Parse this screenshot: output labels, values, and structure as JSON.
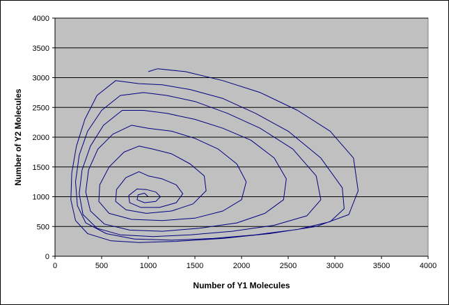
{
  "chart_data": {
    "type": "line",
    "title": "",
    "xlabel": "Number of Y1 Molecules",
    "ylabel": "Number of Y2 Molecules",
    "xlim": [
      0,
      4000
    ],
    "ylim": [
      0,
      4000
    ],
    "xticks": [
      0,
      500,
      1000,
      1500,
      2000,
      2500,
      3000,
      3500,
      4000
    ],
    "yticks": [
      0,
      500,
      1000,
      1500,
      2000,
      2500,
      3000,
      3500,
      4000
    ],
    "grid": "horizontal",
    "legend": "none",
    "plot_background": "#c0c0c0",
    "series_color": "#000080",
    "series": [
      {
        "description_points": "approximate outer-to-inner trajectory of a spiral (oscillation around ~(1000,1000)), outer cycles reach x≈3250, y≈3150",
        "x": [
          1000,
          1100,
          1400,
          1800,
          2200,
          2600,
          2950,
          3200,
          3250,
          3150,
          2800,
          2300,
          1800,
          1300,
          900,
          600,
          350,
          220,
          170,
          180,
          230,
          320,
          450,
          650,
          900,
          1150,
          1450,
          1800,
          2150,
          2500,
          2850,
          3080,
          3100,
          2950,
          2600,
          2150,
          1700,
          1250,
          850,
          550,
          330,
          240,
          220,
          260,
          350,
          500,
          700,
          950,
          1200,
          1500,
          1850,
          2200,
          2550,
          2800,
          2850,
          2700,
          2350,
          1900,
          1450,
          1050,
          700,
          450,
          300,
          260,
          290,
          380,
          520,
          720,
          950,
          1200,
          1500,
          1800,
          2100,
          2350,
          2480,
          2450,
          2250,
          1950,
          1550,
          1150,
          800,
          530,
          380,
          330,
          360,
          460,
          620,
          820,
          1000,
          1250,
          1500,
          1750,
          1950,
          2050,
          2000,
          1800,
          1500,
          1150,
          820,
          580,
          470,
          480,
          580,
          740,
          900,
          1050,
          1250,
          1450,
          1600,
          1620,
          1480,
          1250,
          980,
          760,
          650,
          660,
          760,
          900,
          1000,
          1150,
          1300,
          1370,
          1300,
          1120,
          920,
          800,
          790,
          880,
          980,
          1080,
          1130,
          1080,
          960,
          880,
          890,
          960,
          1000
        ],
        "y": [
          3100,
          3150,
          3100,
          2950,
          2750,
          2450,
          2100,
          1650,
          1100,
          700,
          500,
          380,
          300,
          250,
          230,
          260,
          380,
          600,
          950,
          1400,
          1850,
          2300,
          2700,
          2950,
          2900,
          2880,
          2800,
          2650,
          2400,
          2100,
          1650,
          1150,
          800,
          580,
          450,
          360,
          300,
          270,
          290,
          380,
          560,
          850,
          1250,
          1700,
          2100,
          2450,
          2700,
          2750,
          2700,
          2600,
          2400,
          2150,
          1800,
          1350,
          950,
          680,
          520,
          420,
          360,
          330,
          360,
          470,
          700,
          1050,
          1450,
          1850,
          2200,
          2450,
          2450,
          2400,
          2300,
          2150,
          1950,
          1650,
          1300,
          950,
          720,
          560,
          470,
          420,
          440,
          540,
          760,
          1080,
          1450,
          1800,
          2050,
          2200,
          2150,
          2100,
          1980,
          1800,
          1550,
          1250,
          950,
          760,
          640,
          600,
          620,
          720,
          920,
          1200,
          1500,
          1750,
          1850,
          1800,
          1720,
          1550,
          1350,
          1100,
          880,
          760,
          720,
          780,
          920,
          1120,
          1320,
          1420,
          1350,
          1300,
          1200,
          1050,
          900,
          820,
          820,
          900,
          1020,
          1130,
          1120,
          1080,
          1000,
          920,
          900,
          950,
          1030,
          1060,
          1000
        ]
      }
    ]
  }
}
